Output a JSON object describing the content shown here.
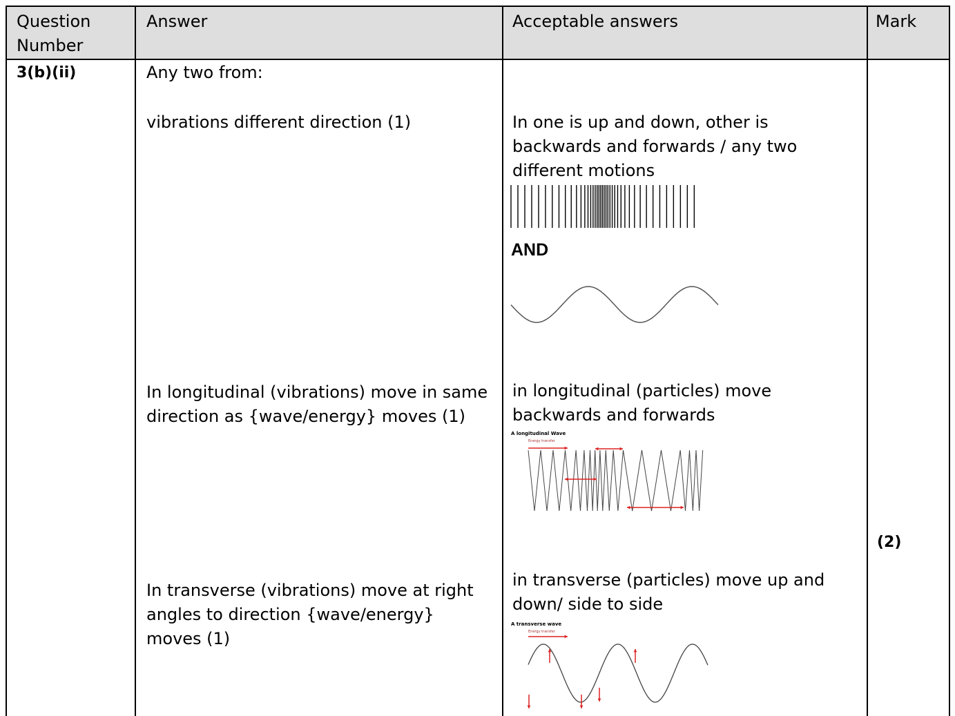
{
  "table": {
    "header": [
      "Question Number",
      "Answer",
      "Acceptable answers",
      "Mark"
    ],
    "rows": [
      {
        "question": "3(b)(ii)",
        "answer": {
          "intro": "Any two from:",
          "points": [
            "vibrations different direction (1)",
            "In longitudinal (vibrations) move in same direction as {wave/energy} moves (1)",
            "In transverse (vibrations) move at right angles to direction {wave/energy} moves (1)"
          ]
        },
        "acceptable": {
          "motions": "In one is up and down, other is backwards and forwards / any two different motions",
          "and": "AND",
          "longitudinal": {
            "text": "in longitudinal (particles) move backwards and forwards",
            "figure_title": "A longitudinal Wave",
            "figure_caption": "Energy transfer"
          },
          "transverse": {
            "text": "in transverse (particles) move up and down/ side to side",
            "figure_title": "A transverse wave",
            "figure_caption": "Energy transfer"
          }
        },
        "mark": "(2)"
      }
    ]
  }
}
